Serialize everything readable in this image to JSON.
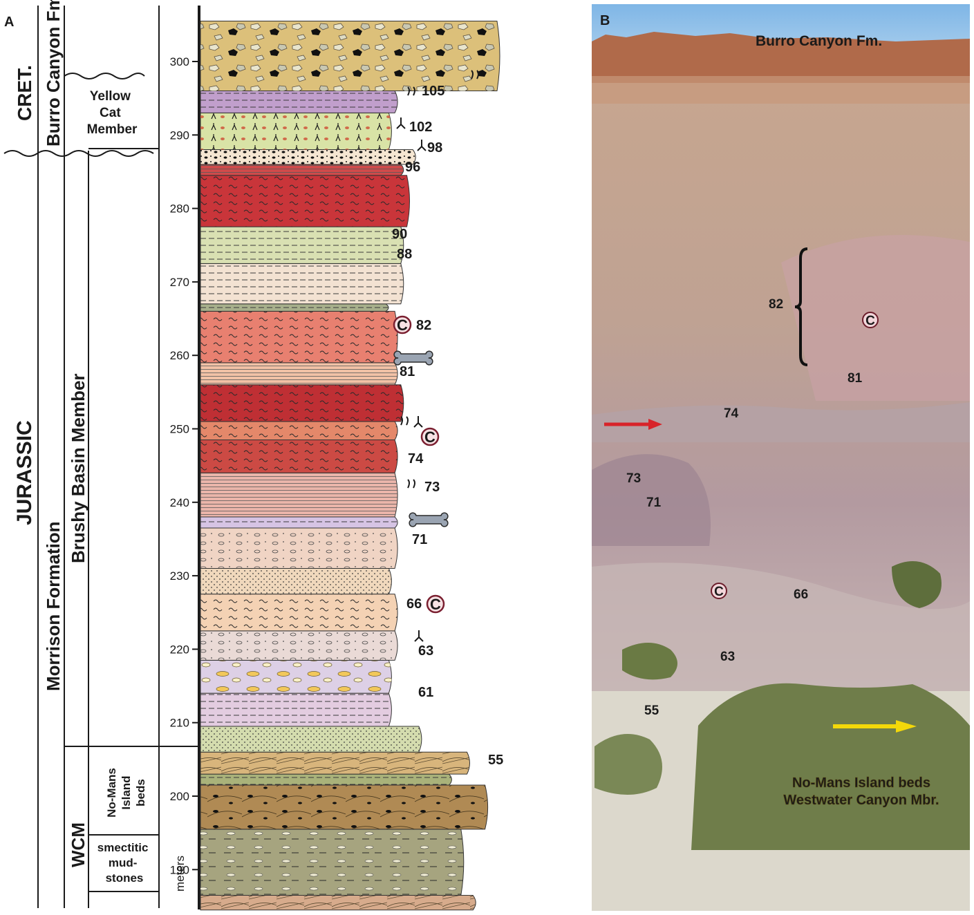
{
  "panel_a": {
    "letter": "A",
    "units": {
      "cret": "CRET.",
      "jurassic": "JURASSIC",
      "burro_canyon": "Burro Canyon Fm.",
      "morrison": "Morrison Formation",
      "yellow_cat": "Yellow Cat Member",
      "brushy_basin": "Brushy Basin Member",
      "wcm": "WCM",
      "no_mans_island": "No-Mans Island beds",
      "smectitic": "smectitic mud- stones"
    },
    "axis": {
      "label": "meters",
      "ticks": [
        "190",
        "200",
        "210",
        "220",
        "230",
        "240",
        "250",
        "260",
        "270",
        "280",
        "290",
        "300"
      ]
    },
    "beds": [
      {
        "from": 184.5,
        "to": 186.5,
        "color": "#d7ab8c",
        "extent": 0.92,
        "pattern": "cross"
      },
      {
        "from": 186.5,
        "to": 195.5,
        "color": "#a6a47f",
        "extent": 0.88,
        "pattern": "dash-lens"
      },
      {
        "from": 195.5,
        "to": 201.5,
        "color": "#b08a54",
        "extent": 0.96,
        "pattern": "cross-pebble"
      },
      {
        "from": 201.5,
        "to": 203.0,
        "color": "#a9b27a",
        "extent": 0.84,
        "pattern": "dash"
      },
      {
        "from": 203.0,
        "to": 206.0,
        "color": "#d8b57c",
        "extent": 0.9,
        "pattern": "cross"
      },
      {
        "from": 206.0,
        "to": 209.5,
        "color": "#d4dcae",
        "extent": 0.74,
        "pattern": "dot"
      },
      {
        "from": 209.5,
        "to": 214.0,
        "color": "#e3cce0",
        "extent": 0.64,
        "pattern": "dash"
      },
      {
        "from": 214.0,
        "to": 218.5,
        "color": "#ddd0e6",
        "extent": 0.64,
        "pattern": "lens-yellow"
      },
      {
        "from": 218.5,
        "to": 222.5,
        "color": "#eadad6",
        "extent": 0.66,
        "pattern": "pebble"
      },
      {
        "from": 222.5,
        "to": 227.5,
        "color": "#f4d2b4",
        "extent": 0.66,
        "pattern": "wavy"
      },
      {
        "from": 227.5,
        "to": 231.0,
        "color": "#f0d8bc",
        "extent": 0.64,
        "pattern": "dot"
      },
      {
        "from": 231.0,
        "to": 236.5,
        "color": "#f0d4c4",
        "extent": 0.66,
        "pattern": "pebble"
      },
      {
        "from": 236.5,
        "to": 238.0,
        "color": "#d6c4e4",
        "extent": 0.66,
        "pattern": "dash"
      },
      {
        "from": 238.0,
        "to": 244.0,
        "color": "#eab5aa",
        "extent": 0.66,
        "pattern": "stripes"
      },
      {
        "from": 244.0,
        "to": 248.5,
        "color": "#cc4a44",
        "extent": 0.66,
        "pattern": "wavy"
      },
      {
        "from": 248.5,
        "to": 251.0,
        "color": "#e4886a",
        "extent": 0.66,
        "pattern": "wavy"
      },
      {
        "from": 251.0,
        "to": 256.0,
        "color": "#bf2f34",
        "extent": 0.68,
        "pattern": "wavy"
      },
      {
        "from": 256.0,
        "to": 259.0,
        "color": "#f2c2a6",
        "extent": 0.66,
        "pattern": "stripes"
      },
      {
        "from": 259.0,
        "to": 266.0,
        "color": "#e88070",
        "extent": 0.66,
        "pattern": "wavy"
      },
      {
        "from": 266.0,
        "to": 267.0,
        "color": "#a8b08c",
        "extent": 0.63,
        "pattern": "dash"
      },
      {
        "from": 267.0,
        "to": 272.5,
        "color": "#f3e2d2",
        "extent": 0.68,
        "pattern": "dash"
      },
      {
        "from": 272.5,
        "to": 277.5,
        "color": "#d9e0b2",
        "extent": 0.68,
        "pattern": "dash"
      },
      {
        "from": 277.5,
        "to": 284.5,
        "color": "#c9353a",
        "extent": 0.7,
        "pattern": "wavy"
      },
      {
        "from": 284.5,
        "to": 286.0,
        "color": "#cf4b4b",
        "extent": 0.68,
        "pattern": "stripes"
      },
      {
        "from": 286.0,
        "to": 288.0,
        "color": "#f5e6d2",
        "extent": 0.72,
        "pattern": "pebble-black"
      },
      {
        "from": 288.0,
        "to": 293.0,
        "color": "#d9e3a6",
        "extent": 0.64,
        "pattern": "root"
      },
      {
        "from": 293.0,
        "to": 296.0,
        "color": "#c19fcc",
        "extent": 0.66,
        "pattern": "dash"
      },
      {
        "from": 296.0,
        "to": 305.5,
        "color": "#dcc07a",
        "extent": 1.0,
        "pattern": "conglomerate"
      }
    ],
    "bed_labels": [
      "55",
      "61",
      "63",
      "66",
      "71",
      "73",
      "74",
      "81",
      "82",
      "88",
      "90",
      "96",
      "98",
      "102",
      "105"
    ]
  },
  "panel_b": {
    "letter": "B",
    "title": "Burro Canyon Fm.",
    "labels": [
      "82",
      "81",
      "74",
      "73",
      "71",
      "66",
      "63",
      "55"
    ],
    "caption_line1": "No-Mans Island beds",
    "caption_line2": "Westwater Canyon Mbr.",
    "arrow_red": "#d8242a",
    "arrow_yellow": "#f3d80a",
    "caption_color": "#f3d80a"
  }
}
